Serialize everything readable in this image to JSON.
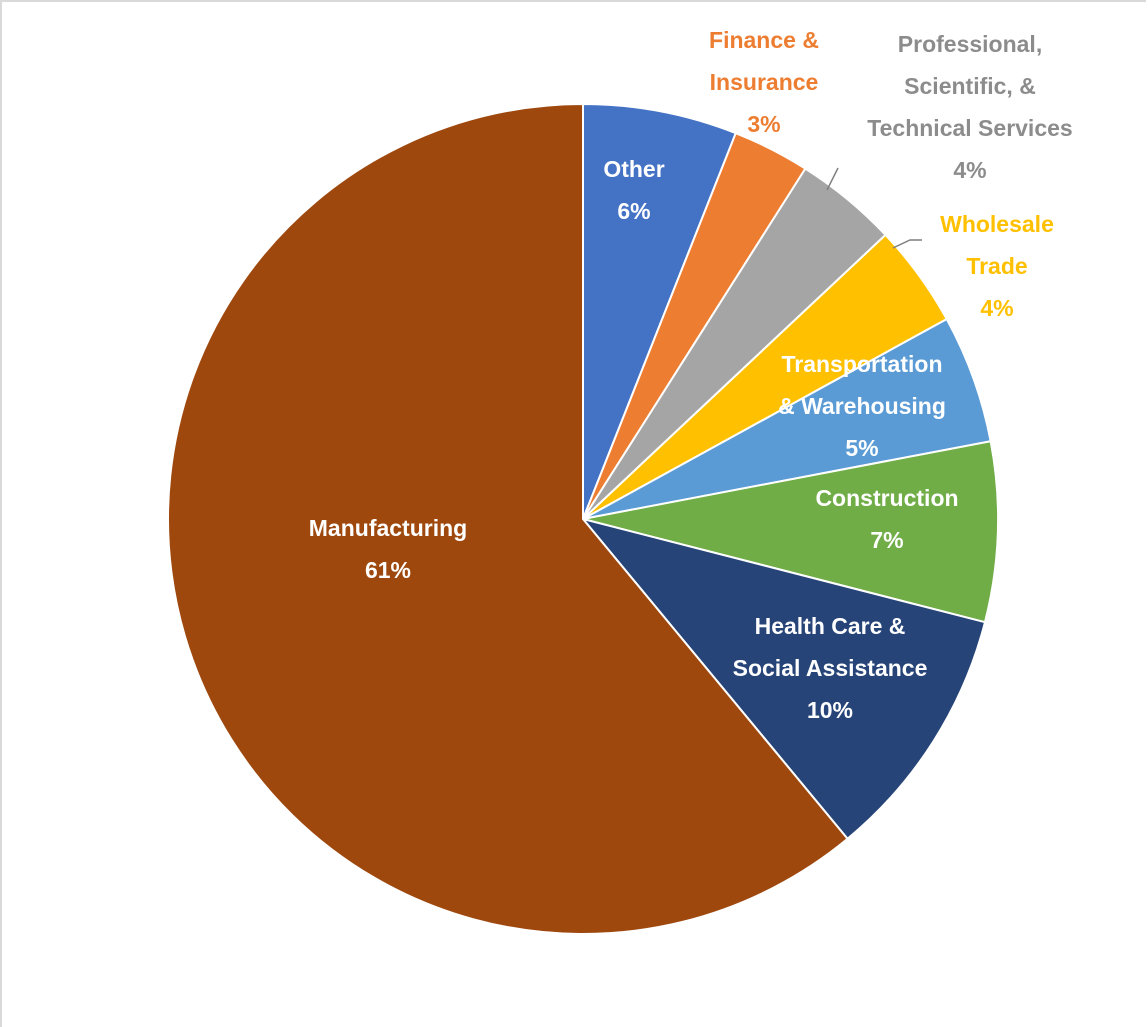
{
  "chart_data": {
    "type": "pie",
    "start_angle_deg": 0,
    "direction": "clockwise",
    "slices": [
      {
        "label_lines": [
          "Other",
          "6%"
        ],
        "value": 6,
        "color": "#4472c4",
        "label_color": "#ffffff"
      },
      {
        "label_lines": [
          "Finance &",
          "Insurance",
          "3%"
        ],
        "value": 3,
        "color": "#ed7d31",
        "label_color": "#ed7d31"
      },
      {
        "label_lines": [
          "Professional,",
          "Scientific, &",
          "Technical Services",
          "4%"
        ],
        "value": 4,
        "color": "#a5a5a5",
        "label_color": "#8c8c8c"
      },
      {
        "label_lines": [
          "Wholesale",
          "Trade",
          "4%"
        ],
        "value": 4,
        "color": "#ffc000",
        "label_color": "#ffc000"
      },
      {
        "label_lines": [
          "Transportation",
          "& Warehousing",
          "5%"
        ],
        "value": 5,
        "color": "#5b9bd5",
        "label_color": "#ffffff"
      },
      {
        "label_lines": [
          "Construction",
          "7%"
        ],
        "value": 7,
        "color": "#70ad47",
        "label_color": "#ffffff"
      },
      {
        "label_lines": [
          "Health Care &",
          "Social Assistance",
          "10%"
        ],
        "value": 10,
        "color": "#264478",
        "label_color": "#ffffff"
      },
      {
        "label_lines": [
          "Manufacturing",
          "61%"
        ],
        "value": 61,
        "color": "#9e480e",
        "label_color": "#ffffff"
      }
    ]
  }
}
